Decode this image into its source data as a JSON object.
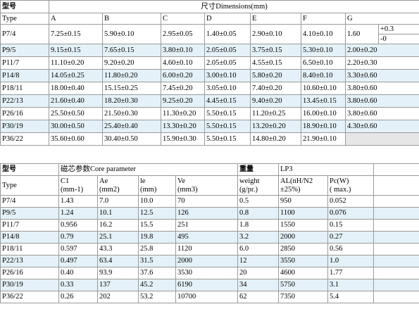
{
  "table1": {
    "title_left": "型号",
    "title_right": "尺寸Dimensions(mm)",
    "columns": [
      "Type",
      "A",
      "B",
      "C",
      "D",
      "E",
      "F",
      "G"
    ],
    "rows": [
      {
        "type": "P7/4",
        "a": "7.25±0.15",
        "b": "5.90±0.10",
        "c": "2.95±0.05",
        "d": "1.40±0.05",
        "e": "2.90±0.10",
        "f": "4.10±0.10",
        "g": "1.60",
        "g_tol_plus": "+0.3",
        "g_tol_minus": "-0"
      },
      {
        "type": "P9/5",
        "a": "9.15±0.15",
        "b": "7.65±0.15",
        "c": "3.80±0.10",
        "d": "2.05±0.05",
        "e": "3.75±0.15",
        "f": "5.30±0.10",
        "g": "2.00±0.20"
      },
      {
        "type": "P11/7",
        "a": "11.10±0.20",
        "b": "9.20±0.20",
        "c": "4.60±0.10",
        "d": "2.05±0.05",
        "e": "4.55±0.15",
        "f": "6.50±0.10",
        "g": "2.20±0.30"
      },
      {
        "type": "P14/8",
        "a": "14.05±0.25",
        "b": "11.80±0.20",
        "c": "6.00±0.20",
        "d": "3.00±0.10",
        "e": "5.80±0.20",
        "f": "8.40±0.10",
        "g": "3.30±0.60"
      },
      {
        "type": "P18/11",
        "a": "18.00±0.40",
        "b": "15.15±0.25",
        "c": "7.45±0.20",
        "d": "3.05±0.10",
        "e": "7.40±0.20",
        "f": "10.60±0.10",
        "g": "3.80±0.60"
      },
      {
        "type": "P22/13",
        "a": "21.60±0.40",
        "b": "18.20±0.30",
        "c": "9.25±0.20",
        "d": "4.45±0.15",
        "e": "9.40±0.20",
        "f": "13.45±0.15",
        "g": "3.80±0.60"
      },
      {
        "type": "P26/16",
        "a": "25.50±0.50",
        "b": "21.50±0.30",
        "c": "11.30±0.20",
        "d": "5.50±0.15",
        "e": "11.20±0.25",
        "f": "16.00±0.10",
        "g": "3.80±0.60"
      },
      {
        "type": "P30/19",
        "a": "30.00±0.50",
        "b": "25.40±0.40",
        "c": "13.30±0.20",
        "d": "5.50±0.15",
        "e": "13.20±0.20",
        "f": "18.90±0.10",
        "g": "4.30±0.60"
      },
      {
        "type": "P36/22",
        "a": "35.60±0.60",
        "b": "30.40±0.50",
        "c": "15.90±0.30",
        "d": "5.50±0.15",
        "e": "14.80±0.20",
        "f": "21.90±0.10",
        "g": ""
      }
    ]
  },
  "table2": {
    "title_left": "型号",
    "title_core": "磁芯参数Core parameter",
    "title_weight": "重量",
    "title_material": "LP3",
    "columns": {
      "type": "Type",
      "c1": [
        "C1",
        "(mm-1)"
      ],
      "ae": [
        "Ae",
        "(mm2)"
      ],
      "le": [
        "le",
        "(mm)"
      ],
      "ve": [
        "Ve",
        "(mm3)"
      ],
      "weight": [
        "weight",
        "(g/pr.)"
      ],
      "al": [
        "AL(nH/N2",
        "±25%)"
      ],
      "pc": [
        "Pc(W)",
        "( max.)"
      ]
    },
    "rows": [
      {
        "type": "P7/4",
        "c1": "1.43",
        "ae": "7.0",
        "le": "10.0",
        "ve": "70",
        "weight": "0.5",
        "al": "950",
        "pc": "0.052"
      },
      {
        "type": "P9/5",
        "c1": "1.24",
        "ae": "10.1",
        "le": "12.5",
        "ve": "126",
        "weight": "0.8",
        "al": "1100",
        "pc": "0.076"
      },
      {
        "type": "P11/7",
        "c1": "0.956",
        "ae": "16.2",
        "le": "15.5",
        "ve": "251",
        "weight": "1.8",
        "al": "1550",
        "pc": "0.15"
      },
      {
        "type": "P14/8",
        "c1": "0.79",
        "ae": "25.1",
        "le": "19.8",
        "ve": "495",
        "weight": "3.2",
        "al": "2000",
        "pc": "0.27"
      },
      {
        "type": "P18/11",
        "c1": "0.597",
        "ae": "43.3",
        "le": "25.8",
        "ve": "1120",
        "weight": "6.0",
        "al": "2850",
        "pc": "0.56"
      },
      {
        "type": "P22/13",
        "c1": "0.497",
        "ae": "63.4",
        "le": "31.5",
        "ve": "2000",
        "weight": "12",
        "al": "3550",
        "pc": "1.0"
      },
      {
        "type": "P26/16",
        "c1": "0.40",
        "ae": "93.9",
        "le": "37.6",
        "ve": "3530",
        "weight": "20",
        "al": "4600",
        "pc": "1.77"
      },
      {
        "type": "P30/19",
        "c1": "0.33",
        "ae": "137",
        "le": "45.2",
        "ve": "6190",
        "weight": "34",
        "al": "5750",
        "pc": "3.1"
      },
      {
        "type": "P36/22",
        "c1": "0.26",
        "ae": "202",
        "le": "53.2",
        "ve": "10700",
        "weight": "62",
        "al": "7350",
        "pc": "5.4"
      }
    ]
  },
  "colors": {
    "row_tint": "#e4f1f8",
    "border": "#9a9a9a",
    "empty_cell": "#e6e6e6"
  }
}
